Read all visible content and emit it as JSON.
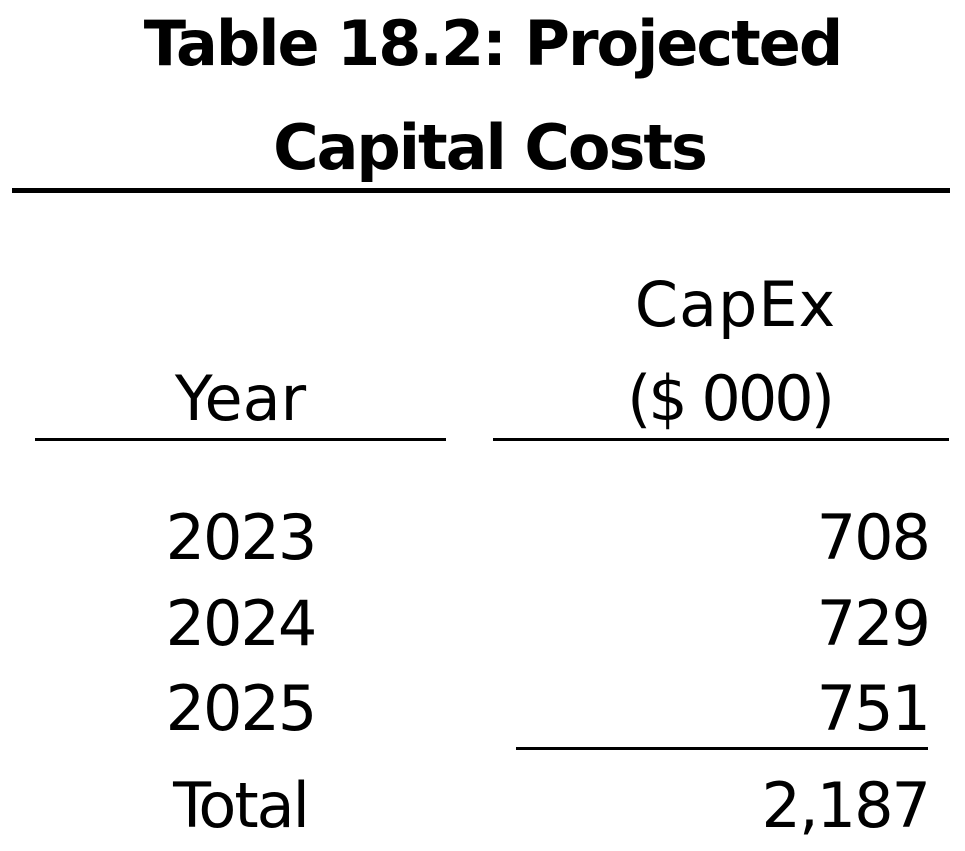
{
  "title": {
    "line1": "Table 18.2: Projected",
    "line2": "Capital Costs"
  },
  "columns": {
    "year": "Year",
    "capex_line1": "CapEx",
    "capex_line2": "($ 000)"
  },
  "rows": [
    {
      "year": "2023",
      "capex": "708"
    },
    {
      "year": "2024",
      "capex": "729"
    },
    {
      "year": "2025",
      "capex": "751"
    }
  ],
  "total": {
    "label": "Total",
    "capex": "2,187"
  }
}
